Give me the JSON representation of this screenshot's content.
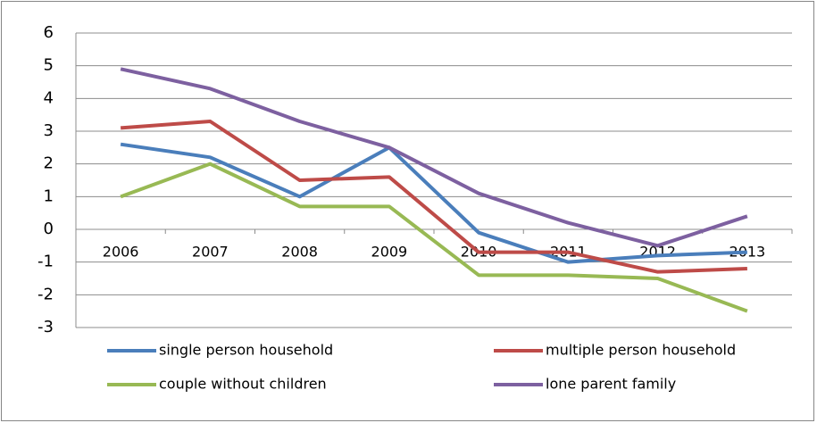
{
  "chart_data": {
    "type": "line",
    "categories": [
      "2006",
      "2007",
      "2008",
      "2009",
      "2010",
      "2011",
      "2012",
      "2013"
    ],
    "series": [
      {
        "name": "single person household",
        "color": "#4a7ebb",
        "values": [
          2.6,
          2.2,
          1.0,
          2.5,
          -0.1,
          -1.0,
          -0.8,
          -0.7
        ]
      },
      {
        "name": "multiple person household",
        "color": "#be4b48",
        "values": [
          3.1,
          3.3,
          1.5,
          1.6,
          -0.7,
          -0.7,
          -1.3,
          -1.2
        ]
      },
      {
        "name": "couple without children",
        "color": "#98b954",
        "values": [
          1.0,
          2.0,
          0.7,
          0.7,
          -1.4,
          -1.4,
          -1.5,
          -2.5
        ]
      },
      {
        "name": "lone parent family",
        "color": "#7d60a0",
        "values": [
          4.9,
          4.3,
          3.3,
          2.5,
          1.1,
          0.2,
          -0.5,
          0.4
        ]
      }
    ],
    "ylim": [
      -3,
      6
    ],
    "yticks": [
      -3,
      -2,
      -1,
      0,
      1,
      2,
      3,
      4,
      5,
      6
    ],
    "grid": true,
    "legend": "bottom"
  }
}
